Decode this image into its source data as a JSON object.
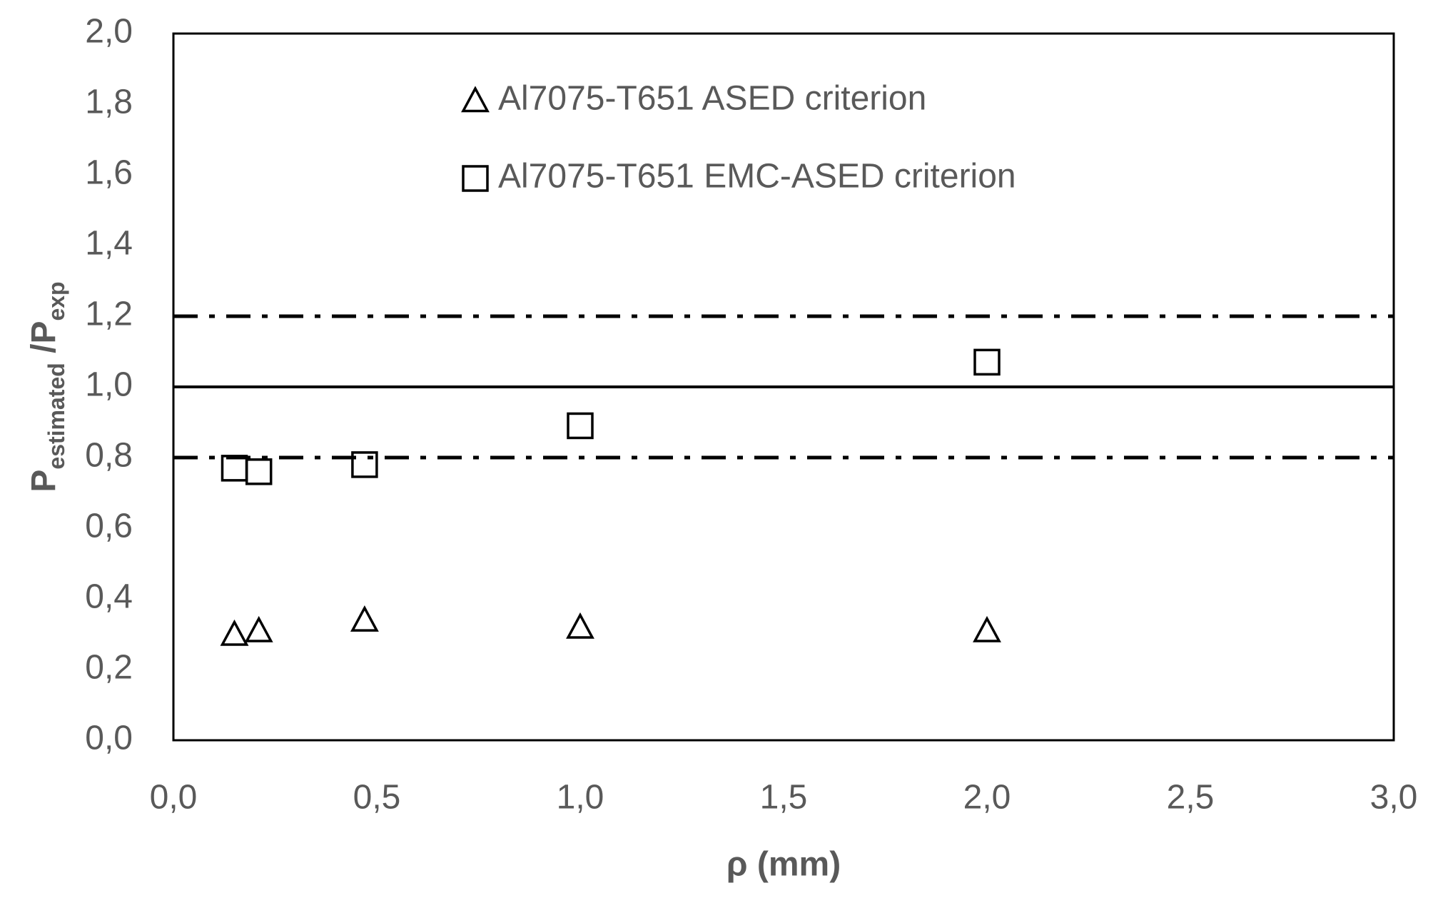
{
  "chart_data": {
    "type": "scatter",
    "xlabel": "ρ (mm)",
    "ylabel": [
      {
        "text": "P"
      },
      {
        "text": "estimated",
        "sub": true
      },
      {
        "text": " /P"
      },
      {
        "text": "exp",
        "sub": true
      }
    ],
    "series": [
      {
        "name": "Al7075-T651 ASED criterion",
        "marker": "triangle",
        "color": "#000000",
        "x": [
          0.15,
          0.21,
          0.47,
          1.0,
          2.0
        ],
        "values": [
          0.3,
          0.31,
          0.34,
          0.32,
          0.31
        ]
      },
      {
        "name": "Al7075-T651 EMC-ASED criterion",
        "marker": "square",
        "color": "#000000",
        "x": [
          0.15,
          0.21,
          0.47,
          1.0,
          2.0
        ],
        "values": [
          0.77,
          0.76,
          0.78,
          0.89,
          1.07
        ]
      }
    ],
    "reference_lines": [
      {
        "value": 1.2,
        "style": "dashdot"
      },
      {
        "value": 1.0,
        "style": "solid"
      },
      {
        "value": 0.8,
        "style": "dashdot"
      }
    ],
    "xlim": [
      0,
      3
    ],
    "ylim": [
      0,
      2
    ],
    "xticks": [
      {
        "value": 0,
        "label": "0,0"
      },
      {
        "value": 0.5,
        "label": "0,5"
      },
      {
        "value": 1,
        "label": "1,0"
      },
      {
        "value": 1.5,
        "label": "1,5"
      },
      {
        "value": 2,
        "label": "2,0"
      },
      {
        "value": 2.5,
        "label": "2,5"
      },
      {
        "value": 3,
        "label": "3,0"
      }
    ],
    "yticks": [
      {
        "value": 0,
        "label": "0,0"
      },
      {
        "value": 0.2,
        "label": "0,2"
      },
      {
        "value": 0.4,
        "label": "0,4"
      },
      {
        "value": 0.6,
        "label": "0,6"
      },
      {
        "value": 0.8,
        "label": "0,8"
      },
      {
        "value": 1,
        "label": "1,0"
      },
      {
        "value": 1.2,
        "label": "1,2"
      },
      {
        "value": 1.4,
        "label": "1,4"
      },
      {
        "value": 1.6,
        "label": "1,6"
      },
      {
        "value": 1.8,
        "label": "1,8"
      },
      {
        "value": 2,
        "label": "2,0"
      }
    ],
    "grid": false
  }
}
